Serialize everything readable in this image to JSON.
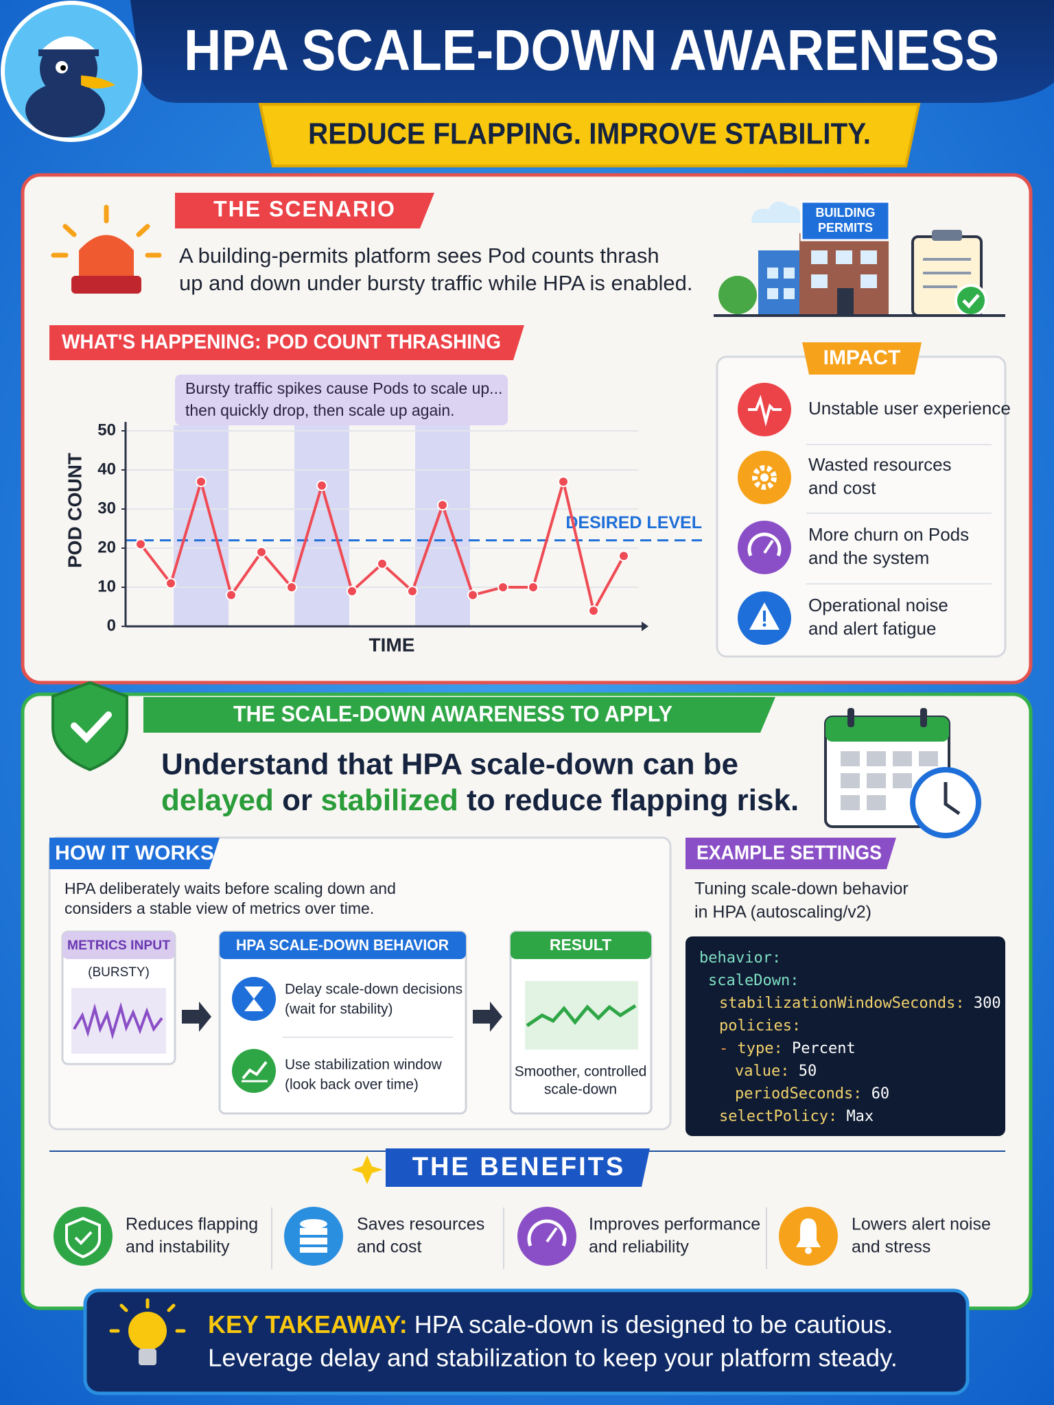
{
  "header": {
    "title": "HPA SCALE-DOWN AWARENESS",
    "subtitle": "REDUCE FLAPPING. IMPROVE STABILITY."
  },
  "scenario": {
    "tag": "THE SCENARIO",
    "lines": [
      "A building-permits platform sees Pod counts thrash",
      "up and down under bursty traffic while HPA is enabled."
    ],
    "sign": [
      "BUILDING",
      "PERMITS"
    ]
  },
  "chart_data": {
    "type": "line",
    "title": "WHAT'S HAPPENING: POD COUNT THRASHING",
    "annotation": [
      "Bursty traffic spikes cause Pods to scale up...",
      "then quickly drop, then scale up again."
    ],
    "x_label": "TIME",
    "y_label": "POD COUNT",
    "categories": [
      null,
      null,
      null,
      null,
      null,
      null,
      null,
      null,
      null,
      null,
      null,
      null,
      null,
      null,
      null,
      null,
      null
    ],
    "values": [
      21,
      11,
      37,
      8,
      19,
      10,
      36,
      9,
      16,
      9,
      31,
      8,
      10,
      10,
      37,
      4,
      18
    ],
    "color": "#ef4b55",
    "ylim": [
      0,
      50
    ],
    "yticks": [
      0,
      10,
      20,
      30,
      40,
      50
    ],
    "grid": true,
    "reference_line": {
      "label": "DESIRED LEVEL",
      "value": 22,
      "color": "#1e6fd9"
    }
  },
  "impact": {
    "tag": "IMPACT",
    "items": [
      [
        "Unstable user experience"
      ],
      [
        "Wasted resources",
        "and cost"
      ],
      [
        "More churn on Pods",
        "and the system"
      ],
      [
        "Operational noise",
        "and alert fatigue"
      ]
    ]
  },
  "awareness": {
    "tag": "THE SCALE-DOWN AWARENESS TO APPLY",
    "line1": "Understand that HPA scale-down can be",
    "parts": [
      "delayed",
      "or",
      "stabilized",
      "to reduce flapping risk."
    ]
  },
  "how_it_works": {
    "tag": "HOW IT WORKS",
    "lines": [
      "HPA deliberately waits before scaling down and",
      "considers a stable view of metrics over time."
    ],
    "metrics": {
      "title": "METRICS INPUT",
      "subtitle": "(BURSTY)"
    },
    "behavior": {
      "title": "HPA SCALE-DOWN BEHAVIOR",
      "items": [
        [
          "Delay scale-down decisions",
          "(wait for stability)"
        ],
        [
          "Use stabilization window",
          "(look back over time)"
        ]
      ]
    },
    "result": {
      "title": "RESULT",
      "lines": [
        "Smoother, controlled",
        "scale-down"
      ]
    }
  },
  "example_settings": {
    "tag": "EXAMPLE SETTINGS",
    "lines": [
      "Tuning scale-down behavior",
      "in HPA (autoscaling/v2)"
    ],
    "code": [
      {
        "key": "behavior:"
      },
      {
        "key": "scaleDown:"
      },
      {
        "key": "stabilizationWindowSeconds:",
        "value": "300"
      },
      {
        "key": "policies:"
      },
      {
        "dash": "-",
        "key": "type:",
        "value": "Percent"
      },
      {
        "key": "value:",
        "value": "50"
      },
      {
        "key": "periodSeconds:",
        "value": "60"
      },
      {
        "key": "selectPolicy:",
        "value": "Max"
      }
    ]
  },
  "benefits": {
    "title": "THE BENEFITS",
    "items": [
      [
        "Reduces flapping",
        "and instability"
      ],
      [
        "Saves resources",
        "and cost"
      ],
      [
        "Improves performance",
        "and reliability"
      ],
      [
        "Lowers alert noise",
        "and stress"
      ]
    ]
  },
  "takeaway": {
    "label": "KEY TAKEAWAY:",
    "lines": [
      "HPA scale-down is designed to be cautious.",
      "Leverage delay and stabilization to keep your platform steady."
    ]
  }
}
